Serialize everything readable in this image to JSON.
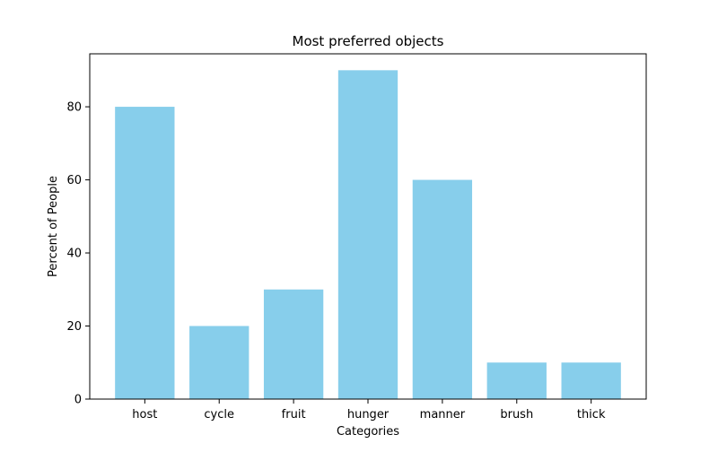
{
  "chart_data": {
    "type": "bar",
    "title": "Most preferred objects",
    "xlabel": "Categories",
    "ylabel": "Percent of People",
    "categories": [
      "host",
      "cycle",
      "fruit",
      "hunger",
      "manner",
      "brush",
      "thick"
    ],
    "values": [
      80,
      20,
      30,
      90,
      60,
      10,
      10
    ],
    "ylim": [
      0,
      94.5
    ],
    "yticks": [
      "0",
      "20",
      "40",
      "60",
      "80"
    ],
    "grid": false,
    "legend": "none",
    "bar_color": "#87ceeb"
  }
}
